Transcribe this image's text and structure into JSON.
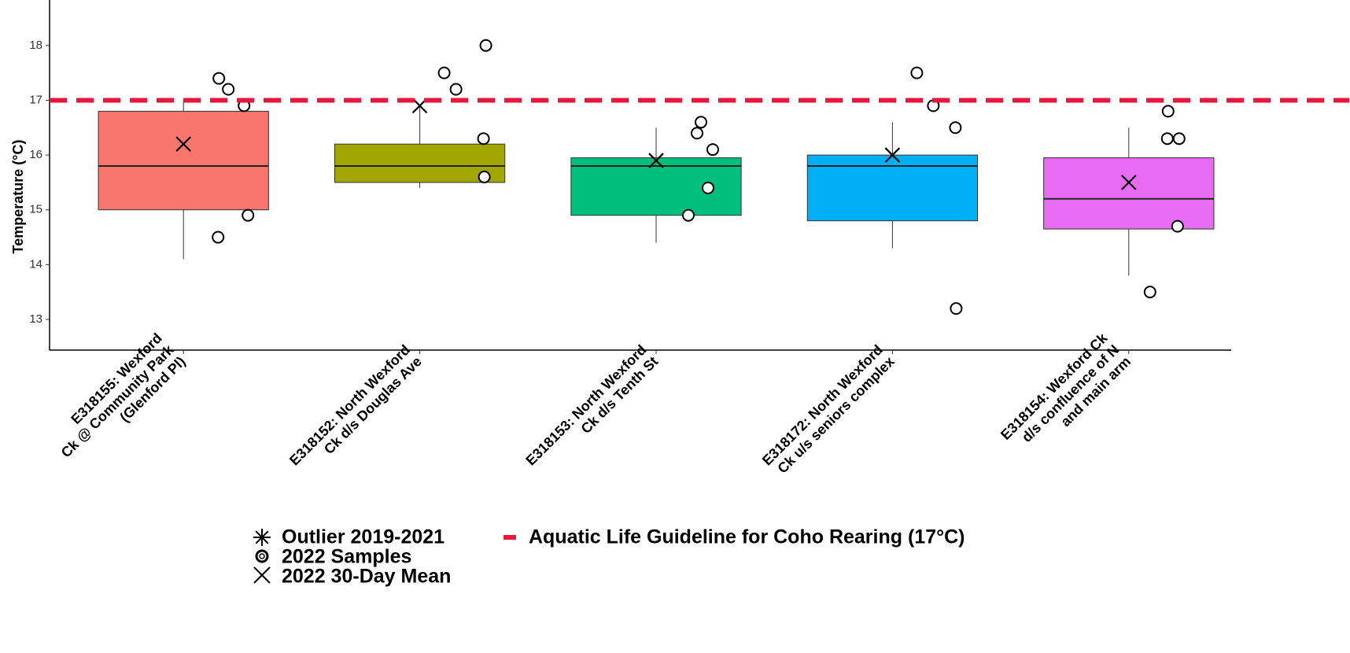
{
  "chart_data": {
    "type": "box",
    "y_label": "Temperature (°C)",
    "categories": [
      [
        "E318155: Wexford",
        "Ck @ Community Park",
        "(Glenford Pl)"
      ],
      [
        "E318152: North Wexford",
        "Ck d/s Douglas Ave"
      ],
      [
        "E318153: North Wexford",
        "Ck d/s Tenth St"
      ],
      [
        "E318172: North Wexford",
        "Ck u/s seniors complex"
      ],
      [
        "E318154: Wexford Ck",
        "d/s confluence of N",
        "and main arm"
      ]
    ],
    "colors": [
      "#f8766d",
      "#a3a500",
      "#00bf7d",
      "#00b0f6",
      "#e76bf3"
    ],
    "whisker_low": [
      14.1,
      15.4,
      14.4,
      14.3,
      13.8
    ],
    "q1": [
      15.0,
      15.5,
      14.9,
      14.8,
      14.65
    ],
    "median": [
      15.8,
      15.8,
      15.8,
      15.8,
      15.2
    ],
    "q3": [
      16.8,
      16.2,
      15.95,
      16.0,
      15.95
    ],
    "whisker_high": [
      17.0,
      16.9,
      16.5,
      16.6,
      16.5
    ],
    "mean": [
      16.2,
      16.9,
      15.9,
      16.0,
      15.5
    ],
    "samples": [
      [
        17.4,
        17.2,
        16.9,
        14.9,
        14.5
      ],
      [
        17.5,
        17.2,
        18.0,
        16.3,
        15.6
      ],
      [
        16.6,
        16.4,
        16.1,
        15.4,
        14.9
      ],
      [
        17.5,
        16.9,
        16.5,
        13.2
      ],
      [
        16.8,
        16.3,
        16.3,
        14.7,
        13.5
      ]
    ],
    "guideline": {
      "value": 17,
      "color": "#e8173c"
    },
    "ylim": [
      12.44,
      18.83
    ],
    "yticks": [
      13,
      14,
      15,
      16,
      17,
      18
    ],
    "legend": [
      "Outlier 2019-2021",
      "2022 Samples",
      "2022 30-Day Mean",
      "Aquatic Life Guideline for Coho Rearing (17°C)"
    ]
  }
}
